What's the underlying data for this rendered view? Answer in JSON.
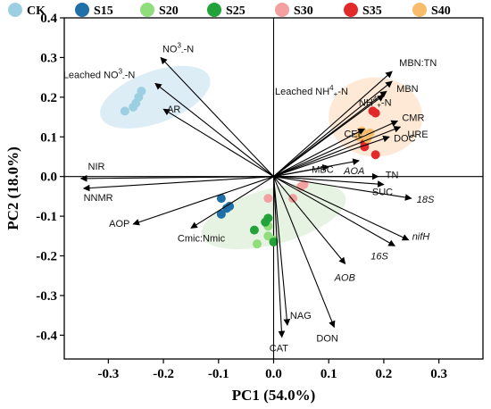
{
  "chart_data": {
    "type": "scatter",
    "xlabel": "PC1 (54.0%)",
    "ylabel": "PC2 (18.0%)",
    "xlim": [
      -0.38,
      0.38
    ],
    "ylim": [
      -0.46,
      0.4
    ],
    "x_ticks": [
      "-0.3",
      "-0.2",
      "-0.1",
      "0.0",
      "0.1",
      "0.2",
      "0.3"
    ],
    "x_tick_values": [
      -0.3,
      -0.2,
      -0.1,
      0.0,
      0.1,
      0.2,
      0.3
    ],
    "y_ticks": [
      "0.4",
      "0.3",
      "0.2",
      "0.1",
      "0.0",
      "-0.1",
      "-0.2",
      "-0.3",
      "-0.4"
    ],
    "y_tick_values": [
      0.4,
      0.3,
      0.2,
      0.1,
      0.0,
      -0.1,
      -0.2,
      -0.3,
      -0.4
    ],
    "reference_lines": {
      "x": 0,
      "y": 0
    },
    "legend_position": "top",
    "series": [
      {
        "name": "CK",
        "color": "#9dcfe3",
        "points": [
          [
            -0.27,
            0.165
          ],
          [
            -0.255,
            0.175
          ],
          [
            -0.25,
            0.185
          ],
          [
            -0.245,
            0.2
          ],
          [
            -0.24,
            0.215
          ]
        ]
      },
      {
        "name": "S15",
        "color": "#1f6fa8",
        "points": [
          [
            -0.095,
            -0.055
          ],
          [
            -0.085,
            -0.08
          ],
          [
            -0.095,
            -0.095
          ],
          [
            -0.08,
            -0.075
          ]
        ]
      },
      {
        "name": "S20",
        "color": "#90dd7c",
        "points": [
          [
            -0.01,
            -0.125
          ],
          [
            -0.03,
            -0.17
          ],
          [
            -0.01,
            -0.15
          ],
          [
            -0.0,
            -0.16
          ]
        ]
      },
      {
        "name": "S25",
        "color": "#23a23a",
        "points": [
          [
            -0.01,
            -0.105
          ],
          [
            -0.035,
            -0.135
          ],
          [
            -0.015,
            -0.115
          ],
          [
            0.0,
            -0.165
          ]
        ]
      },
      {
        "name": "S30",
        "color": "#f3a0a0",
        "points": [
          [
            -0.01,
            -0.055
          ],
          [
            0.05,
            -0.025
          ],
          [
            0.055,
            -0.02
          ],
          [
            0.035,
            -0.055
          ]
        ]
      },
      {
        "name": "S35",
        "color": "#e32a2a",
        "points": [
          [
            0.18,
            0.165
          ],
          [
            0.185,
            0.16
          ],
          [
            0.165,
            0.085
          ],
          [
            0.165,
            0.075
          ],
          [
            0.185,
            0.055
          ]
        ]
      },
      {
        "name": "S40",
        "color": "#f7bd6b",
        "points": [
          [
            0.16,
            0.115
          ],
          [
            0.175,
            0.11
          ],
          [
            0.155,
            0.1
          ],
          [
            0.17,
            0.095
          ]
        ]
      }
    ],
    "ellipses": [
      {
        "group": "CK",
        "color": "#d6eaf4",
        "center": [
          -0.215,
          0.2
        ],
        "rx": 0.105,
        "ry": 0.065,
        "rotate": -20
      },
      {
        "group": "S15-S30",
        "color": "#e3f1dd",
        "center": [
          -0.0,
          -0.1
        ],
        "rx": 0.135,
        "ry": 0.07,
        "rotate": -15
      },
      {
        "group": "S35-S40",
        "color": "#fde5cf",
        "center": [
          0.185,
          0.15
        ],
        "rx": 0.085,
        "ry": 0.1,
        "rotate": 0
      }
    ],
    "loadings": [
      {
        "label": "NO3--N",
        "html_label": "NO<tspan font-size='8' dy='-5'>3</tspan><tspan font-size='8' dy='7'>-</tspan><tspan dy='-2'>-N</tspan>",
        "x": -0.205,
        "y": 0.3
      },
      {
        "label": "Leached NO3--N",
        "html_label": "Leached NO<tspan font-size='8' dy='-5'>3</tspan><tspan font-size='8' dy='7'>-</tspan><tspan dy='-2'>-N</tspan>",
        "x": -0.215,
        "y": 0.235
      },
      {
        "label": "AR",
        "x": -0.2,
        "y": 0.17
      },
      {
        "label": "NIR",
        "x": -0.35,
        "y": -0.005
      },
      {
        "label": "NNMR",
        "x": -0.345,
        "y": -0.03
      },
      {
        "label": "AOP",
        "x": -0.255,
        "y": -0.12
      },
      {
        "label": "Cmic:Nmic",
        "x": -0.15,
        "y": -0.13
      },
      {
        "label": "MBN:TN",
        "x": 0.215,
        "y": 0.265
      },
      {
        "label": "MBN",
        "x": 0.215,
        "y": 0.24
      },
      {
        "label": "Leached NH4+-N",
        "html_label": "Leached NH<tspan font-size='8' dy='-5'>4</tspan><tspan font-size='8' dy='7'>+</tspan><tspan dy='-2'>-N</tspan>",
        "x": 0.205,
        "y": 0.215
      },
      {
        "label": "NH4+-N",
        "html_label": "NH<tspan font-size='8' dy='-5'>4</tspan><tspan font-size='8' dy='7'>+</tspan><tspan dy='-2'>-N</tspan>",
        "x": 0.2,
        "y": 0.205
      },
      {
        "label": "CEL",
        "x": 0.165,
        "y": 0.12
      },
      {
        "label": "CMR",
        "x": 0.225,
        "y": 0.14
      },
      {
        "label": "URE",
        "x": 0.23,
        "y": 0.125
      },
      {
        "label": "DOC",
        "x": 0.21,
        "y": 0.1
      },
      {
        "label": "MBC",
        "x": 0.1,
        "y": 0.025
      },
      {
        "label": "AOA",
        "x": 0.155,
        "y": 0.04,
        "italic": true
      },
      {
        "label": "TN",
        "x": 0.19,
        "y": 0.0
      },
      {
        "label": "SUC",
        "x": 0.2,
        "y": -0.02
      },
      {
        "label": "18S",
        "x": 0.25,
        "y": -0.055,
        "italic": true
      },
      {
        "label": "nifH",
        "x": 0.245,
        "y": -0.16,
        "italic": true
      },
      {
        "label": "16S",
        "x": 0.22,
        "y": -0.175,
        "italic": true
      },
      {
        "label": "AOB",
        "x": 0.13,
        "y": -0.22,
        "italic": true
      },
      {
        "label": "NAG",
        "x": 0.025,
        "y": -0.375
      },
      {
        "label": "CAT",
        "x": 0.015,
        "y": -0.405
      },
      {
        "label": "DON",
        "x": 0.11,
        "y": -0.38
      }
    ]
  }
}
